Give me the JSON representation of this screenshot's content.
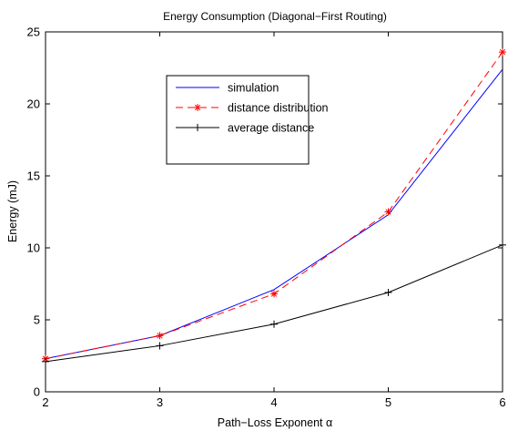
{
  "chart_data": {
    "type": "line",
    "title": "Energy Consumption (Diagonal−First Routing)",
    "xlabel": "Path−Loss Exponent α",
    "ylabel": "Energy (mJ)",
    "xlim": [
      2,
      6
    ],
    "ylim": [
      0,
      25
    ],
    "x_ticks": [
      "2",
      "3",
      "4",
      "5",
      "6"
    ],
    "y_ticks": [
      "0",
      "5",
      "10",
      "15",
      "20",
      "25"
    ],
    "grid": false,
    "legend_placement": "upper-left inside plot",
    "x": [
      2,
      3,
      4,
      5,
      6
    ],
    "series": [
      {
        "name": "simulation",
        "values": [
          2.3,
          3.9,
          7.1,
          12.3,
          22.4
        ],
        "color": "#0000ff",
        "line": "solid",
        "marker": "none"
      },
      {
        "name": "distance distribution",
        "values": [
          2.3,
          3.9,
          6.8,
          12.5,
          23.6
        ],
        "color": "#ff0000",
        "line": "dashed",
        "marker": "asterisk"
      },
      {
        "name": "average distance",
        "values": [
          2.1,
          3.2,
          4.7,
          6.9,
          10.2
        ],
        "color": "#000000",
        "line": "solid",
        "marker": "plus"
      }
    ]
  }
}
